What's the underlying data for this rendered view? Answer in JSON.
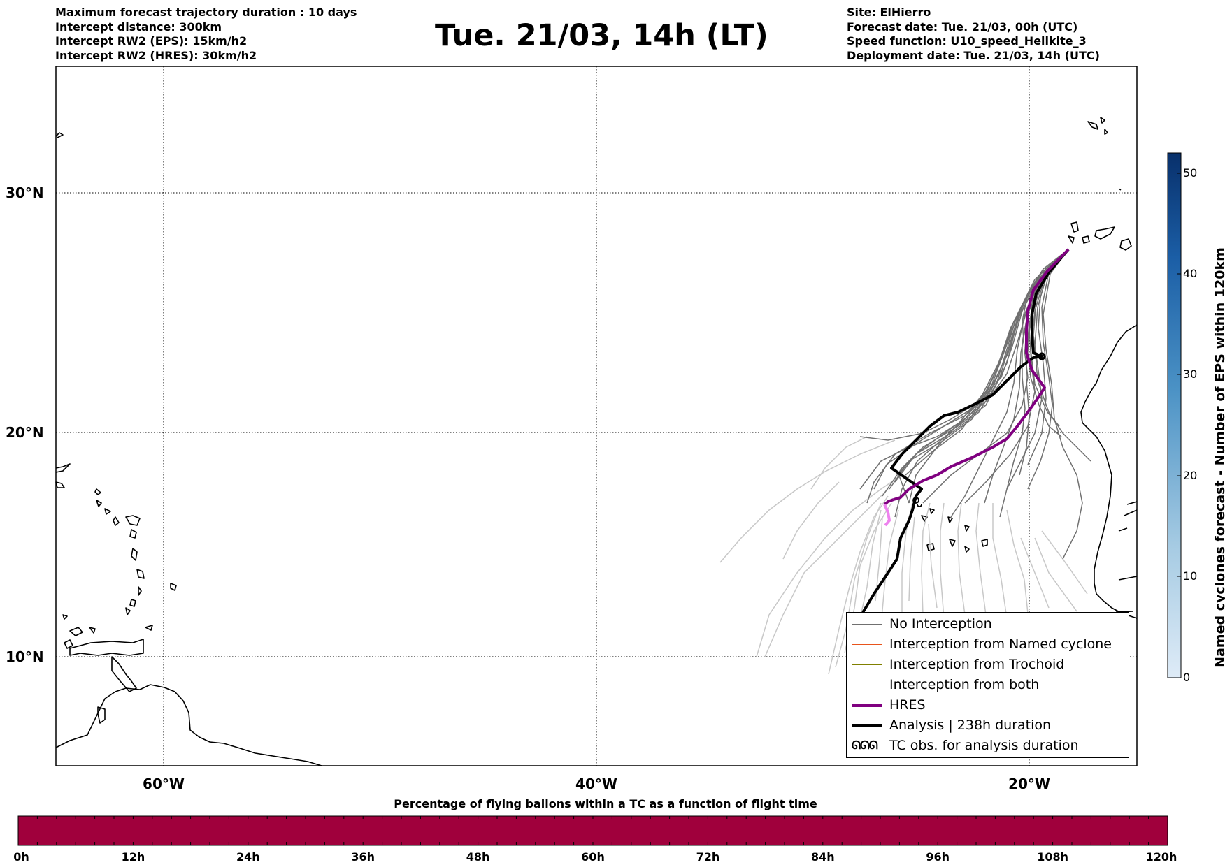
{
  "header_left": [
    "Maximum forecast trajectory duration : 10 days",
    "Intercept distance: 300km",
    "Intercept RW2 (EPS):  15km/h2",
    "Intercept RW2 (HRES): 30km/h2"
  ],
  "title": "Tue. 21/03, 14h (LT)",
  "header_right": [
    "Site: ElHierro",
    "Forecast date: Tue. 21/03, 00h (UTC)",
    "Speed function: U10_speed_Helikite_3",
    "Deployment date: Tue. 21/03, 14h (UTC)"
  ],
  "map": {
    "lat_labels": [
      "30°N",
      "20°N",
      "10°N"
    ],
    "lon_labels": [
      "60°W",
      "40°W",
      "20°W"
    ],
    "gridlines": "dotted"
  },
  "legend": [
    {
      "label": "No Interception",
      "color": "#707070",
      "style": "thin"
    },
    {
      "label": "Interception from Named cyclone",
      "color": "#e8541c",
      "style": "thin"
    },
    {
      "label": "Interception from Trochoid",
      "color": "#808000",
      "style": "thin"
    },
    {
      "label": "Interception from both",
      "color": "#008000",
      "style": "thin"
    },
    {
      "label": "HRES",
      "color": "#800080",
      "style": "thick"
    },
    {
      "label": "Analysis | 238h duration",
      "color": "#000000",
      "style": "thick"
    },
    {
      "label": "TC obs. for analysis duration",
      "color": "#000000",
      "style": "symbol",
      "symbol": "ᘏᘏᘏ"
    }
  ],
  "right_colorbar": {
    "title": "Named cyclones forecast - Number of EPS within 120km",
    "ticks": [
      "0",
      "10",
      "20",
      "30",
      "40",
      "50"
    ],
    "min": 0,
    "max": 52,
    "color_low": "#deebf7",
    "color_high": "#08306b"
  },
  "bottom_colorbar": {
    "title": "Percentage of flying ballons within a TC as a function of flight time",
    "ticks": [
      "0h",
      "12h",
      "24h",
      "36h",
      "48h",
      "60h",
      "72h",
      "84h",
      "96h",
      "108h",
      "120h"
    ],
    "fill_color": "#a0003c"
  }
}
